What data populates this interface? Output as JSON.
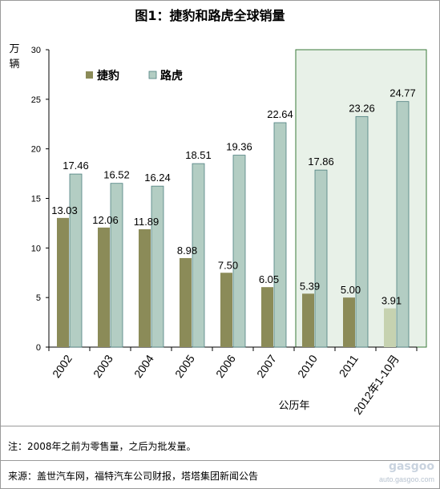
{
  "chart_data": {
    "type": "bar",
    "title": "图1：捷豹和路虎全球销量",
    "ylabel_lines": [
      "万",
      "辆"
    ],
    "xlabel": "公历年",
    "ylim": [
      0,
      30
    ],
    "yticks": [
      0,
      5,
      10,
      15,
      20,
      25,
      30
    ],
    "grid": false,
    "legend_position": "top-left",
    "categories": [
      "2002",
      "2003",
      "2004",
      "2005",
      "2006",
      "2007",
      "2010",
      "2011",
      "2012年1-10月"
    ],
    "series": [
      {
        "name": "捷豹",
        "color": "#8b8b58",
        "values": [
          13.03,
          12.06,
          11.89,
          8.98,
          7.5,
          6.05,
          5.39,
          5.0,
          3.91
        ],
        "labels": [
          "13.03",
          "12.06",
          "11.89",
          "8.98",
          "7.50",
          "6.05",
          "5.39",
          "5.00",
          "3.91"
        ]
      },
      {
        "name": "路虎",
        "color": "#b3cdc3",
        "values": [
          17.46,
          16.52,
          16.24,
          18.51,
          19.36,
          22.64,
          17.86,
          23.26,
          24.77
        ],
        "labels": [
          "17.46",
          "16.52",
          "16.24",
          "18.51",
          "19.36",
          "22.64",
          "17.86",
          "23.26",
          "24.77"
        ]
      }
    ],
    "highlight_last_point_color": "#c6d2b0",
    "highlight_region_categories": [
      "2010",
      "2011",
      "2012年1-10月"
    ],
    "highlight_region_color": "#e8f1e8"
  },
  "notes": {
    "note1": "注：2008年之前为零售量，之后为批发量。",
    "source": "来源：盖世汽车网，福特汽车公司财报，塔塔集团新闻公告"
  },
  "watermark": {
    "logo": "gasgoo",
    "url": "auto.gasgoo.com"
  }
}
